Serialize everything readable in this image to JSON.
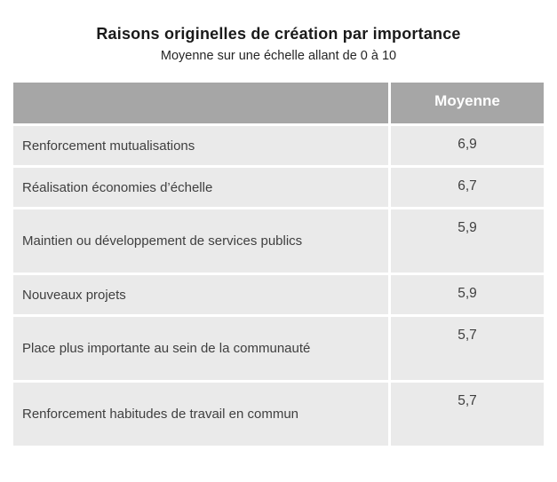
{
  "header": {
    "title": "Raisons originelles de création par importance",
    "subtitle": "Moyenne sur une échelle allant de 0 à 10"
  },
  "table": {
    "value_column_header": "Moyenne",
    "rows": [
      {
        "label": "Renforcement mutualisations",
        "value": "6,9"
      },
      {
        "label": "Réalisation économies d’échelle",
        "value": "6,7"
      },
      {
        "label": "Maintien ou développement de services publics",
        "value": "5,9"
      },
      {
        "label": "Nouveaux projets",
        "value": "5,9"
      },
      {
        "label": "Place plus importante au sein de la communauté",
        "value": "5,7"
      },
      {
        "label": "Renforcement habitudes de travail en commun",
        "value": "5,7"
      }
    ]
  },
  "colors": {
    "header_bg": "#a6a6a6",
    "row_bg": "#eaeaea",
    "header_text": "#ffffff",
    "body_text": "#3f3f3f"
  },
  "chart_data": {
    "type": "table",
    "title": "Raisons originelles de création par importance",
    "subtitle": "Moyenne sur une échelle allant de 0 à 10",
    "columns": [
      "",
      "Moyenne"
    ],
    "categories": [
      "Renforcement mutualisations",
      "Réalisation économies d’échelle",
      "Maintien ou développement de services publics",
      "Nouveaux projets",
      "Place plus importante au sein de la communauté",
      "Renforcement habitudes de travail en commun"
    ],
    "values": [
      6.9,
      6.7,
      5.9,
      5.9,
      5.7,
      5.7
    ],
    "value_scale": [
      0,
      10
    ]
  }
}
